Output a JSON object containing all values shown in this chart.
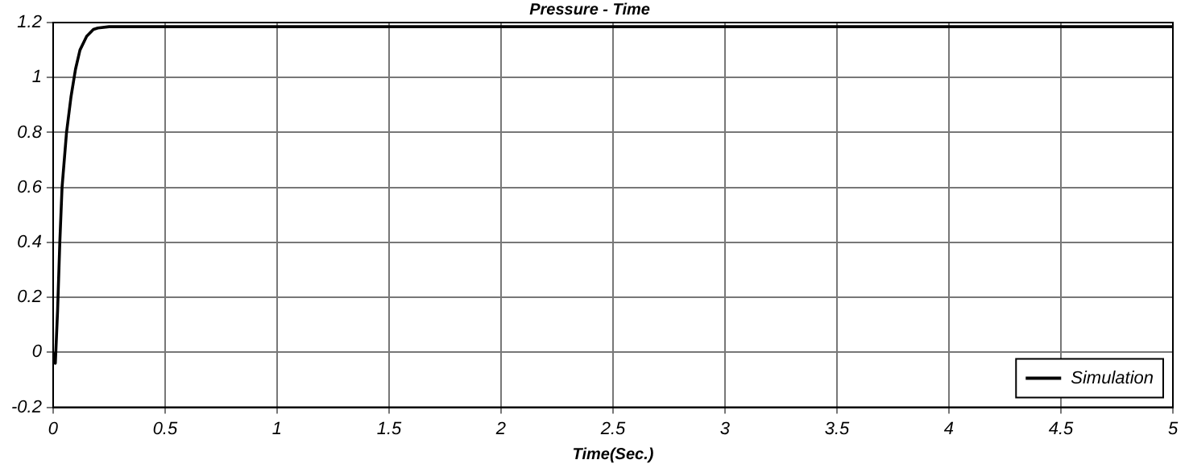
{
  "chart_data": {
    "type": "line",
    "title": "Pressure - Time",
    "xlabel": "Time(Sec.)",
    "xlim": [
      0,
      5
    ],
    "xticks": [
      0,
      0.5,
      1,
      1.5,
      2,
      2.5,
      3,
      3.5,
      4,
      4.5,
      5
    ],
    "ylim": [
      -0.2,
      1.2
    ],
    "yticks": [
      -0.2,
      0,
      0.2,
      0.4,
      0.6,
      0.8,
      1,
      1.2
    ],
    "grid": true,
    "legend": "bottom right",
    "marker": "none",
    "line_style": "solid",
    "series": [
      {
        "name": "Simulation",
        "color": "#000000",
        "x": [
          0,
          0.01,
          0.02,
          0.03,
          0.04,
          0.06,
          0.08,
          0.1,
          0.12,
          0.15,
          0.18,
          0.2,
          0.25,
          0.3,
          1,
          2,
          3,
          4,
          5
        ],
        "values": [
          0,
          -0.04,
          0.15,
          0.4,
          0.6,
          0.8,
          0.93,
          1.03,
          1.1,
          1.15,
          1.175,
          1.18,
          1.185,
          1.185,
          1.185,
          1.185,
          1.185,
          1.185,
          1.185
        ]
      }
    ]
  }
}
